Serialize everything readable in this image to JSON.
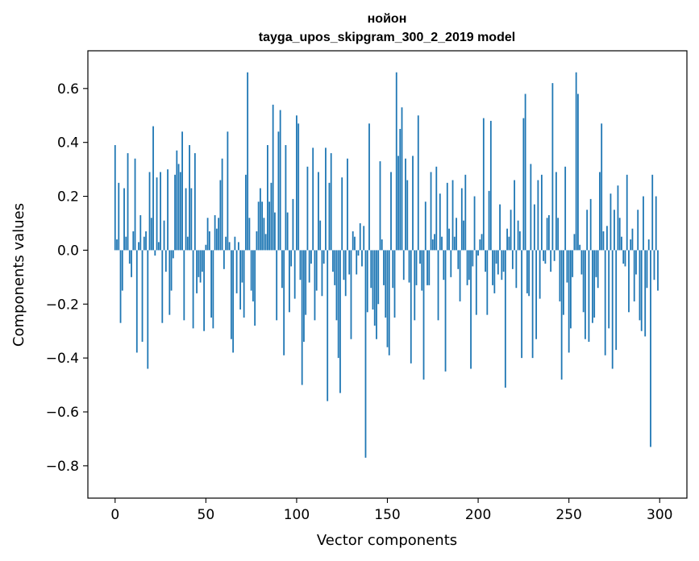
{
  "chart_data": {
    "type": "bar",
    "title": "нойон",
    "subtitle": "tayga_upos_skipgram_300_2_2019 model",
    "xlabel": "Vector components",
    "ylabel": "Components values",
    "xlim": [
      -15,
      315
    ],
    "ylim": [
      -0.92,
      0.74
    ],
    "xticks": [
      0,
      50,
      100,
      150,
      200,
      250,
      300
    ],
    "yticks": [
      -0.8,
      -0.6,
      -0.4,
      -0.2,
      0.0,
      0.2,
      0.4,
      0.6
    ],
    "ytick_labels": [
      "−0.8",
      "−0.6",
      "−0.4",
      "−0.2",
      "0.0",
      "0.2",
      "0.4",
      "0.6"
    ],
    "grid": false,
    "bar_color": "#1f77b4",
    "n_components": 300,
    "values": [
      0.39,
      0.04,
      0.25,
      -0.27,
      -0.15,
      0.23,
      0.05,
      0.36,
      -0.05,
      -0.1,
      0.07,
      0.34,
      -0.38,
      0.03,
      0.13,
      -0.34,
      0.05,
      0.07,
      -0.44,
      0.29,
      0.12,
      0.46,
      -0.02,
      0.27,
      0.03,
      0.29,
      -0.27,
      0.11,
      -0.08,
      0.3,
      -0.24,
      -0.15,
      -0.03,
      0.28,
      0.37,
      0.32,
      0.29,
      0.44,
      -0.26,
      0.23,
      0.05,
      0.39,
      0.23,
      -0.29,
      0.36,
      -0.16,
      -0.1,
      -0.12,
      -0.08,
      -0.3,
      0.02,
      0.12,
      0.07,
      -0.25,
      -0.29,
      0.13,
      0.08,
      0.12,
      0.26,
      0.34,
      -0.07,
      0.05,
      0.44,
      0.03,
      -0.33,
      -0.38,
      0.05,
      -0.16,
      0.03,
      -0.22,
      -0.12,
      -0.25,
      0.28,
      0.66,
      0.12,
      -0.15,
      -0.19,
      -0.28,
      0.07,
      0.18,
      0.23,
      0.18,
      0.12,
      0.06,
      0.39,
      0.18,
      0.25,
      0.54,
      0.14,
      -0.26,
      0.44,
      0.52,
      -0.14,
      -0.39,
      0.39,
      0.14,
      -0.23,
      -0.06,
      0.19,
      -0.18,
      0.5,
      0.47,
      -0.11,
      -0.5,
      -0.34,
      -0.24,
      0.31,
      -0.12,
      -0.05,
      0.38,
      -0.26,
      -0.15,
      0.29,
      0.11,
      -0.17,
      -0.05,
      0.38,
      -0.56,
      0.25,
      0.36,
      -0.08,
      -0.13,
      -0.26,
      -0.4,
      -0.53,
      0.27,
      -0.11,
      -0.17,
      0.34,
      -0.09,
      -0.33,
      0.07,
      0.05,
      -0.09,
      -0.02,
      0.1,
      -0.06,
      0.09,
      -0.77,
      -0.23,
      0.47,
      -0.14,
      -0.22,
      -0.28,
      -0.33,
      -0.2,
      0.33,
      0.04,
      -0.13,
      -0.25,
      -0.36,
      -0.39,
      0.29,
      -0.14,
      -0.25,
      0.66,
      0.35,
      0.45,
      0.53,
      -0.11,
      0.34,
      0.26,
      -0.12,
      -0.42,
      0.35,
      -0.26,
      -0.13,
      0.5,
      -0.05,
      -0.15,
      -0.48,
      0.18,
      -0.13,
      -0.13,
      0.29,
      0.04,
      0.06,
      0.31,
      -0.26,
      0.21,
      0.05,
      -0.11,
      -0.45,
      0.25,
      0.08,
      -0.1,
      0.26,
      0.05,
      0.12,
      -0.07,
      -0.19,
      0.23,
      0.11,
      0.28,
      -0.13,
      -0.11,
      -0.44,
      -0.06,
      0.2,
      -0.24,
      -0.02,
      0.04,
      0.06,
      0.49,
      -0.08,
      -0.24,
      0.22,
      0.48,
      -0.13,
      -0.16,
      -0.05,
      -0.09,
      0.17,
      -0.11,
      -0.08,
      -0.51,
      0.08,
      0.05,
      0.15,
      -0.07,
      0.26,
      -0.14,
      0.11,
      0.07,
      -0.4,
      0.49,
      0.58,
      -0.16,
      -0.17,
      0.32,
      -0.4,
      0.17,
      -0.33,
      0.26,
      -0.18,
      0.28,
      -0.04,
      -0.05,
      0.12,
      0.13,
      -0.08,
      0.62,
      -0.04,
      0.29,
      0.12,
      -0.19,
      -0.48,
      -0.24,
      0.31,
      -0.12,
      -0.38,
      -0.29,
      -0.1,
      0.06,
      0.66,
      0.58,
      0.02,
      -0.09,
      -0.23,
      -0.33,
      0.15,
      -0.34,
      0.19,
      -0.27,
      -0.25,
      -0.1,
      -0.14,
      0.29,
      0.47,
      0.07,
      -0.39,
      0.09,
      -0.29,
      0.21,
      -0.44,
      0.15,
      -0.37,
      0.24,
      0.12,
      0.05,
      -0.05,
      -0.06,
      0.28,
      -0.23,
      0.04,
      0.08,
      -0.19,
      -0.09,
      0.15,
      -0.26,
      -0.3,
      0.2,
      -0.32,
      -0.14,
      0.04,
      -0.73,
      0.28,
      -0.11,
      0.2,
      -0.15
    ]
  }
}
